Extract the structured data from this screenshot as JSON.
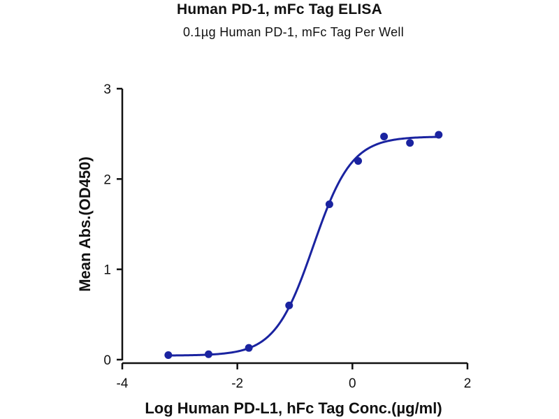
{
  "chart_data": {
    "type": "scatter",
    "title": "Human PD-1, mFc Tag ELISA",
    "subtitle": "0.1µg Human PD-1, mFc Tag Per Well",
    "xlabel": "Log Human PD-L1, hFc Tag Conc.(µg/ml)",
    "ylabel": "Mean Abs.(OD450)",
    "xlim": [
      -4,
      2
    ],
    "ylim": [
      0,
      3
    ],
    "x_ticks": [
      -4,
      -2,
      0,
      2
    ],
    "y_ticks": [
      0,
      1,
      2,
      3
    ],
    "grid": false,
    "legend": "none",
    "series": [
      {
        "points": [
          {
            "x": -3.2,
            "y": 0.05
          },
          {
            "x": -2.5,
            "y": 0.06
          },
          {
            "x": -1.8,
            "y": 0.13
          },
          {
            "x": -1.1,
            "y": 0.6
          },
          {
            "x": -0.4,
            "y": 1.72
          },
          {
            "x": 0.1,
            "y": 2.2
          },
          {
            "x": 0.55,
            "y": 2.47
          },
          {
            "x": 1.0,
            "y": 2.4
          },
          {
            "x": 1.5,
            "y": 2.49
          }
        ],
        "fit": {
          "model": "4PL",
          "bottom": 0.045,
          "top": 2.47,
          "log_ec50": -0.68,
          "hill_slope": 1.3,
          "x_range": [
            -3.2,
            1.5
          ]
        },
        "color": "#1a23a0"
      }
    ]
  }
}
